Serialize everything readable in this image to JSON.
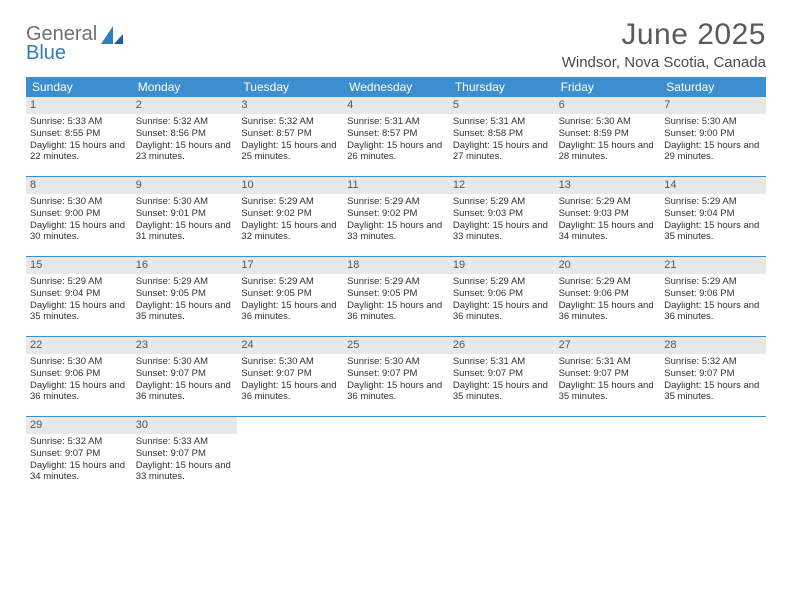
{
  "logo": {
    "general": "General",
    "blue": "Blue"
  },
  "title": "June 2025",
  "location": "Windsor, Nova Scotia, Canada",
  "colors": {
    "header_bar": "#3d8ecf",
    "day_num_bg": "#e8e8e8",
    "page_bg": "#ffffff",
    "text": "#333333",
    "title_color": "#5a5a5a"
  },
  "dow": [
    "Sunday",
    "Monday",
    "Tuesday",
    "Wednesday",
    "Thursday",
    "Friday",
    "Saturday"
  ],
  "days": [
    {
      "n": 1,
      "sr": "5:33 AM",
      "ss": "8:55 PM",
      "dl": "15 hours and 22 minutes."
    },
    {
      "n": 2,
      "sr": "5:32 AM",
      "ss": "8:56 PM",
      "dl": "15 hours and 23 minutes."
    },
    {
      "n": 3,
      "sr": "5:32 AM",
      "ss": "8:57 PM",
      "dl": "15 hours and 25 minutes."
    },
    {
      "n": 4,
      "sr": "5:31 AM",
      "ss": "8:57 PM",
      "dl": "15 hours and 26 minutes."
    },
    {
      "n": 5,
      "sr": "5:31 AM",
      "ss": "8:58 PM",
      "dl": "15 hours and 27 minutes."
    },
    {
      "n": 6,
      "sr": "5:30 AM",
      "ss": "8:59 PM",
      "dl": "15 hours and 28 minutes."
    },
    {
      "n": 7,
      "sr": "5:30 AM",
      "ss": "9:00 PM",
      "dl": "15 hours and 29 minutes."
    },
    {
      "n": 8,
      "sr": "5:30 AM",
      "ss": "9:00 PM",
      "dl": "15 hours and 30 minutes."
    },
    {
      "n": 9,
      "sr": "5:30 AM",
      "ss": "9:01 PM",
      "dl": "15 hours and 31 minutes."
    },
    {
      "n": 10,
      "sr": "5:29 AM",
      "ss": "9:02 PM",
      "dl": "15 hours and 32 minutes."
    },
    {
      "n": 11,
      "sr": "5:29 AM",
      "ss": "9:02 PM",
      "dl": "15 hours and 33 minutes."
    },
    {
      "n": 12,
      "sr": "5:29 AM",
      "ss": "9:03 PM",
      "dl": "15 hours and 33 minutes."
    },
    {
      "n": 13,
      "sr": "5:29 AM",
      "ss": "9:03 PM",
      "dl": "15 hours and 34 minutes."
    },
    {
      "n": 14,
      "sr": "5:29 AM",
      "ss": "9:04 PM",
      "dl": "15 hours and 35 minutes."
    },
    {
      "n": 15,
      "sr": "5:29 AM",
      "ss": "9:04 PM",
      "dl": "15 hours and 35 minutes."
    },
    {
      "n": 16,
      "sr": "5:29 AM",
      "ss": "9:05 PM",
      "dl": "15 hours and 35 minutes."
    },
    {
      "n": 17,
      "sr": "5:29 AM",
      "ss": "9:05 PM",
      "dl": "15 hours and 36 minutes."
    },
    {
      "n": 18,
      "sr": "5:29 AM",
      "ss": "9:05 PM",
      "dl": "15 hours and 36 minutes."
    },
    {
      "n": 19,
      "sr": "5:29 AM",
      "ss": "9:06 PM",
      "dl": "15 hours and 36 minutes."
    },
    {
      "n": 20,
      "sr": "5:29 AM",
      "ss": "9:06 PM",
      "dl": "15 hours and 36 minutes."
    },
    {
      "n": 21,
      "sr": "5:29 AM",
      "ss": "9:06 PM",
      "dl": "15 hours and 36 minutes."
    },
    {
      "n": 22,
      "sr": "5:30 AM",
      "ss": "9:06 PM",
      "dl": "15 hours and 36 minutes."
    },
    {
      "n": 23,
      "sr": "5:30 AM",
      "ss": "9:07 PM",
      "dl": "15 hours and 36 minutes."
    },
    {
      "n": 24,
      "sr": "5:30 AM",
      "ss": "9:07 PM",
      "dl": "15 hours and 36 minutes."
    },
    {
      "n": 25,
      "sr": "5:30 AM",
      "ss": "9:07 PM",
      "dl": "15 hours and 36 minutes."
    },
    {
      "n": 26,
      "sr": "5:31 AM",
      "ss": "9:07 PM",
      "dl": "15 hours and 35 minutes."
    },
    {
      "n": 27,
      "sr": "5:31 AM",
      "ss": "9:07 PM",
      "dl": "15 hours and 35 minutes."
    },
    {
      "n": 28,
      "sr": "5:32 AM",
      "ss": "9:07 PM",
      "dl": "15 hours and 35 minutes."
    },
    {
      "n": 29,
      "sr": "5:32 AM",
      "ss": "9:07 PM",
      "dl": "15 hours and 34 minutes."
    },
    {
      "n": 30,
      "sr": "5:33 AM",
      "ss": "9:07 PM",
      "dl": "15 hours and 33 minutes."
    }
  ],
  "labels": {
    "sunrise": "Sunrise:",
    "sunset": "Sunset:",
    "daylight": "Daylight:"
  },
  "layout": {
    "first_dow_index": 0,
    "cols": 7
  }
}
